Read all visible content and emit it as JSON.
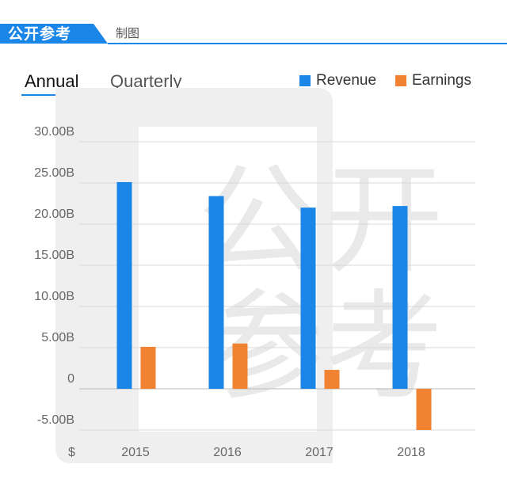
{
  "header": {
    "brand": "公开参考",
    "chart_by": "制图",
    "accent_color": "#1a86e8"
  },
  "watermark": {
    "text": [
      "公",
      "开",
      "参",
      "考"
    ]
  },
  "tabs": [
    {
      "label": "Annual",
      "active": true
    },
    {
      "label": "Quarterly",
      "active": false
    }
  ],
  "legend": [
    {
      "label": "Revenue",
      "color": "#1a86e8"
    },
    {
      "label": "Earnings",
      "color": "#f08231"
    }
  ],
  "chart_data": {
    "type": "bar",
    "categories": [
      "2015",
      "2016",
      "2017",
      "2018"
    ],
    "series": [
      {
        "name": "Revenue",
        "color": "#1a86e8",
        "values": [
          25.1,
          23.4,
          22.0,
          22.2
        ]
      },
      {
        "name": "Earnings",
        "color": "#f08231",
        "values": [
          5.1,
          5.5,
          2.3,
          -5.0
        ]
      }
    ],
    "unit": "B",
    "currency_label": "$",
    "ylim": [
      -5,
      30
    ],
    "yticks": [
      30,
      25,
      20,
      15,
      10,
      5,
      0,
      -5
    ],
    "ytick_labels": [
      "30.00B",
      "25.00B",
      "20.00B",
      "15.00B",
      "10.00B",
      "5.00B",
      "0",
      "-5.00B"
    ],
    "grid": true
  }
}
